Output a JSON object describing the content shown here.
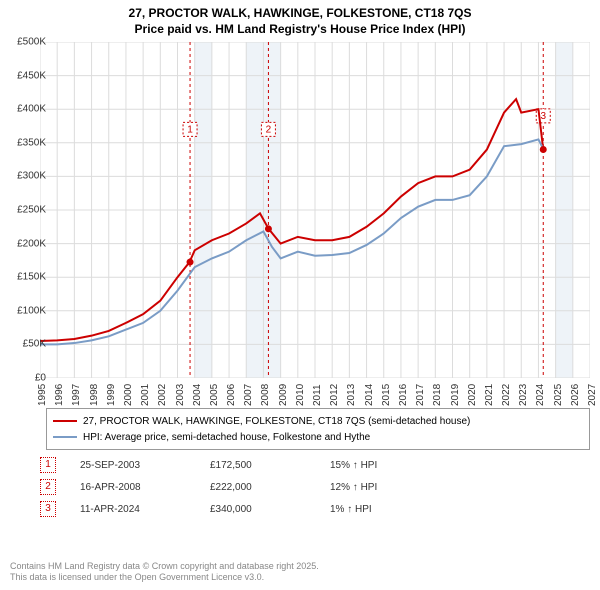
{
  "title": {
    "line1": "27, PROCTOR WALK, HAWKINGE, FOLKESTONE, CT18 7QS",
    "line2": "Price paid vs. HM Land Registry's House Price Index (HPI)"
  },
  "chart": {
    "type": "line",
    "x_min": 1995,
    "x_max": 2027,
    "y_min": 0,
    "y_max": 500000,
    "y_ticks": [
      0,
      50000,
      100000,
      150000,
      200000,
      250000,
      300000,
      350000,
      400000,
      450000,
      500000
    ],
    "y_tick_labels": [
      "£0",
      "£50K",
      "£100K",
      "£150K",
      "£200K",
      "£250K",
      "£300K",
      "£350K",
      "£400K",
      "£450K",
      "£500K"
    ],
    "x_ticks": [
      1995,
      1996,
      1997,
      1998,
      1999,
      2000,
      2001,
      2002,
      2003,
      2004,
      2005,
      2006,
      2007,
      2008,
      2009,
      2010,
      2011,
      2012,
      2013,
      2014,
      2015,
      2016,
      2017,
      2018,
      2019,
      2020,
      2021,
      2022,
      2023,
      2024,
      2025,
      2026,
      2027
    ],
    "grid_color": "#dcdcdc",
    "background_color": "#ffffff",
    "shaded_bands": [
      {
        "from": 2004,
        "to": 2005,
        "color": "#eef3f8"
      },
      {
        "from": 2007,
        "to": 2009,
        "color": "#eef3f8"
      },
      {
        "from": 2025,
        "to": 2026,
        "color": "#eef3f8"
      }
    ],
    "series": [
      {
        "name": "Price paid",
        "color": "#cc0000",
        "width": 2,
        "data": [
          [
            1995,
            55000
          ],
          [
            1996,
            56000
          ],
          [
            1997,
            58000
          ],
          [
            1998,
            63000
          ],
          [
            1999,
            70000
          ],
          [
            2000,
            82000
          ],
          [
            2001,
            95000
          ],
          [
            2002,
            115000
          ],
          [
            2003,
            150000
          ],
          [
            2003.7,
            172500
          ],
          [
            2004,
            190000
          ],
          [
            2005,
            205000
          ],
          [
            2006,
            215000
          ],
          [
            2007,
            230000
          ],
          [
            2007.8,
            245000
          ],
          [
            2008.3,
            222000
          ],
          [
            2009,
            200000
          ],
          [
            2010,
            210000
          ],
          [
            2011,
            205000
          ],
          [
            2012,
            205000
          ],
          [
            2013,
            210000
          ],
          [
            2014,
            225000
          ],
          [
            2015,
            245000
          ],
          [
            2016,
            270000
          ],
          [
            2017,
            290000
          ],
          [
            2018,
            300000
          ],
          [
            2019,
            300000
          ],
          [
            2020,
            310000
          ],
          [
            2021,
            340000
          ],
          [
            2022,
            395000
          ],
          [
            2022.7,
            415000
          ],
          [
            2023,
            395000
          ],
          [
            2024,
            400000
          ],
          [
            2024.28,
            340000
          ]
        ]
      },
      {
        "name": "HPI",
        "color": "#7a9cc6",
        "width": 2,
        "data": [
          [
            1995,
            50000
          ],
          [
            1996,
            50000
          ],
          [
            1997,
            52000
          ],
          [
            1998,
            56000
          ],
          [
            1999,
            62000
          ],
          [
            2000,
            72000
          ],
          [
            2001,
            82000
          ],
          [
            2002,
            100000
          ],
          [
            2003,
            130000
          ],
          [
            2004,
            165000
          ],
          [
            2005,
            178000
          ],
          [
            2006,
            188000
          ],
          [
            2007,
            205000
          ],
          [
            2008,
            218000
          ],
          [
            2008.5,
            195000
          ],
          [
            2009,
            178000
          ],
          [
            2010,
            188000
          ],
          [
            2011,
            182000
          ],
          [
            2012,
            183000
          ],
          [
            2013,
            186000
          ],
          [
            2014,
            198000
          ],
          [
            2015,
            215000
          ],
          [
            2016,
            238000
          ],
          [
            2017,
            255000
          ],
          [
            2018,
            265000
          ],
          [
            2019,
            265000
          ],
          [
            2020,
            272000
          ],
          [
            2021,
            300000
          ],
          [
            2022,
            345000
          ],
          [
            2023,
            348000
          ],
          [
            2024,
            355000
          ],
          [
            2024.3,
            340000
          ]
        ]
      }
    ],
    "markers": [
      {
        "label": "1",
        "x": 2003.73,
        "y": 172500,
        "label_y": 370000
      },
      {
        "label": "2",
        "x": 2008.29,
        "y": 222000,
        "label_y": 370000
      },
      {
        "label": "3",
        "x": 2024.28,
        "y": 340000,
        "label_y": 390000
      }
    ],
    "marker_color": "#cc0000",
    "marker_line_dash": "3,3"
  },
  "legend": {
    "items": [
      {
        "color": "#cc0000",
        "label": "27, PROCTOR WALK, HAWKINGE, FOLKESTONE, CT18 7QS (semi-detached house)"
      },
      {
        "color": "#7a9cc6",
        "label": "HPI: Average price, semi-detached house, Folkestone and Hythe"
      }
    ]
  },
  "sales": [
    {
      "num": "1",
      "date": "25-SEP-2003",
      "price": "£172,500",
      "diff": "15% ↑ HPI"
    },
    {
      "num": "2",
      "date": "16-APR-2008",
      "price": "£222,000",
      "diff": "12% ↑ HPI"
    },
    {
      "num": "3",
      "date": "11-APR-2024",
      "price": "£340,000",
      "diff": "1% ↑ HPI"
    }
  ],
  "footer": {
    "line1": "Contains HM Land Registry data © Crown copyright and database right 2025.",
    "line2": "This data is licensed under the Open Government Licence v3.0."
  }
}
